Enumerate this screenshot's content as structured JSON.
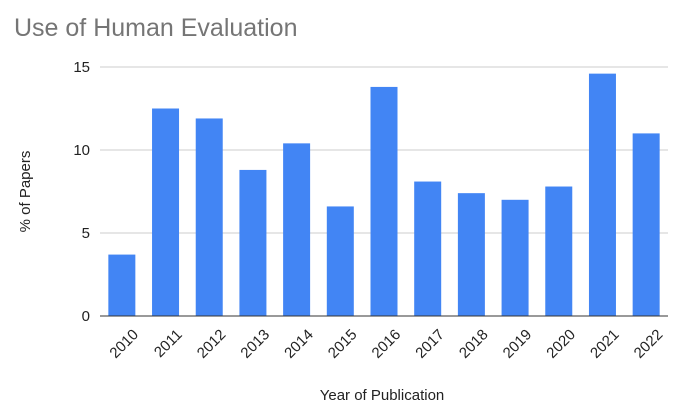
{
  "chart_data": {
    "type": "bar",
    "title": "Use of Human Evaluation",
    "xlabel": "Year of Publication",
    "ylabel": "% of Papers",
    "categories": [
      "2010",
      "2011",
      "2012",
      "2013",
      "2014",
      "2015",
      "2016",
      "2017",
      "2018",
      "2019",
      "2020",
      "2021",
      "2022"
    ],
    "values": [
      3.7,
      12.5,
      11.9,
      8.8,
      10.4,
      6.6,
      13.8,
      8.1,
      7.4,
      7.0,
      7.8,
      14.6,
      11.0
    ],
    "ylim": [
      0,
      15
    ],
    "yticks": [
      "0",
      "5",
      "10",
      "15"
    ],
    "grid": true,
    "legend": "none",
    "bar_color": "#4285f4",
    "grid_color": "#cccccc",
    "axis_color": "#333333"
  }
}
